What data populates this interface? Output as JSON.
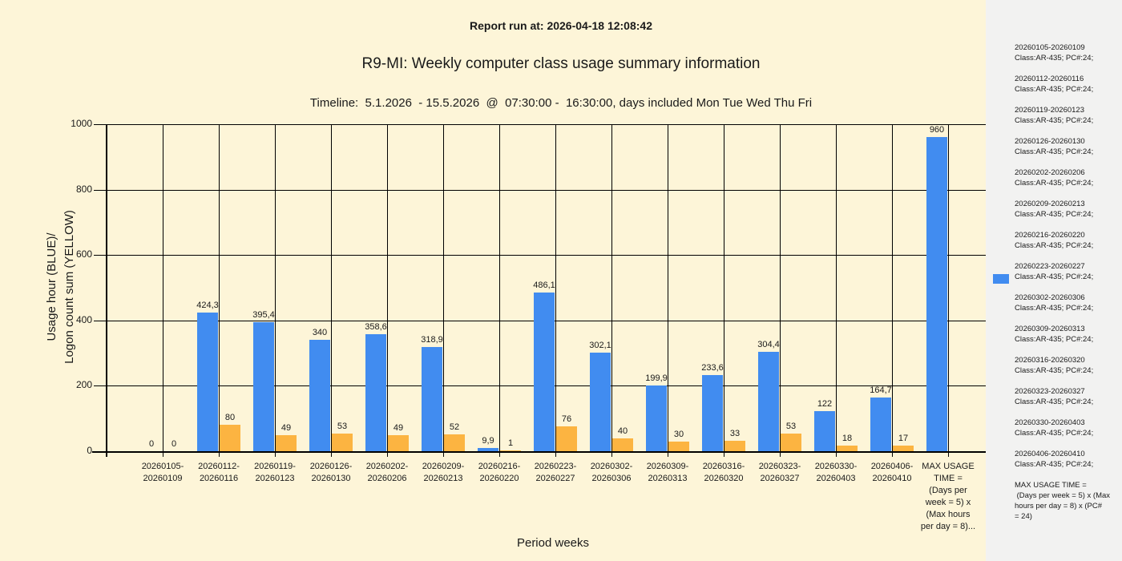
{
  "header": {
    "report_run": "Report run at: 2026-04-18 12:08:42",
    "title": "R9-MI: Weekly computer class usage summary information",
    "timeline": "Timeline:  5.1.2026  - 15.5.2026  @  07:30:00 -  16:30:00, days included Mon Tue Wed Thu Fri"
  },
  "chart_data": {
    "type": "bar",
    "title": "R9-MI: Weekly computer class usage summary information",
    "subtitle": "Report run at: 2026-04-18 12:08:42",
    "timeline": "Timeline:  5.1.2026  - 15.5.2026  @  07:30:00 -  16:30:00, days included Mon Tue Wed Thu Fri",
    "xlabel": "Period weeks",
    "ylabel_lines": [
      "Usage hour (BLUE)/",
      "Logon count sum (YELLOW)"
    ],
    "ylim": [
      0,
      1000
    ],
    "yticks": [
      0,
      200,
      400,
      600,
      800,
      1000
    ],
    "grid": "horizontal at yticks, vertical at category centers",
    "legend_position": "right",
    "categories": [
      [
        "20260105-",
        "20260109"
      ],
      [
        "20260112-",
        "20260116"
      ],
      [
        "20260119-",
        "20260123"
      ],
      [
        "20260126-",
        "20260130"
      ],
      [
        "20260202-",
        "20260206"
      ],
      [
        "20260209-",
        "20260213"
      ],
      [
        "20260216-",
        "20260220"
      ],
      [
        "20260223-",
        "20260227"
      ],
      [
        "20260302-",
        "20260306"
      ],
      [
        "20260309-",
        "20260313"
      ],
      [
        "20260316-",
        "20260320"
      ],
      [
        "20260323-",
        "20260327"
      ],
      [
        "20260330-",
        "20260403"
      ],
      [
        "20260406-",
        "20260410"
      ],
      [
        "MAX USAGE",
        "TIME =",
        "(Days per",
        "week = 5) x",
        "(Max hours",
        "per day = 8)..."
      ]
    ],
    "series": [
      {
        "name": "Usage hour (BLUE)",
        "color": "#418CF0",
        "values": [
          0,
          424.3,
          395.4,
          340,
          358.6,
          318.9,
          9.9,
          486.1,
          302.1,
          199.9,
          233.6,
          304.4,
          122,
          164.7,
          960
        ],
        "labels": [
          "0",
          "424,3",
          "395,4",
          "340",
          "358,6",
          "318,9",
          "9,9",
          "486,1",
          "302,1",
          "199,9",
          "233,6",
          "304,4",
          "122",
          "164,7",
          "960"
        ]
      },
      {
        "name": "Logon count sum (YELLOW)",
        "color": "#FCB441",
        "values": [
          0,
          80,
          49,
          53,
          49,
          52,
          1,
          76,
          40,
          30,
          33,
          53,
          18,
          17,
          null
        ],
        "labels": [
          "0",
          "80",
          "49",
          "53",
          "49",
          "52",
          "1",
          "76",
          "40",
          "30",
          "33",
          "53",
          "18",
          "17",
          null
        ]
      }
    ]
  },
  "legend": {
    "swatch_color": "#418CF0",
    "entries": [
      {
        "range": "20260105-20260109",
        "detail": "Class:AR-435; PC#:24;"
      },
      {
        "range": "20260112-20260116",
        "detail": "Class:AR-435; PC#:24;"
      },
      {
        "range": "20260119-20260123",
        "detail": "Class:AR-435; PC#:24;"
      },
      {
        "range": "20260126-20260130",
        "detail": "Class:AR-435; PC#:24;"
      },
      {
        "range": "20260202-20260206",
        "detail": "Class:AR-435; PC#:24;"
      },
      {
        "range": "20260209-20260213",
        "detail": "Class:AR-435; PC#:24;"
      },
      {
        "range": "20260216-20260220",
        "detail": "Class:AR-435; PC#:24;"
      },
      {
        "range": "20260223-20260227",
        "detail": "Class:AR-435; PC#:24;"
      },
      {
        "range": "20260302-20260306",
        "detail": "Class:AR-435; PC#:24;"
      },
      {
        "range": "20260309-20260313",
        "detail": "Class:AR-435; PC#:24;"
      },
      {
        "range": "20260316-20260320",
        "detail": "Class:AR-435; PC#:24;"
      },
      {
        "range": "20260323-20260327",
        "detail": "Class:AR-435; PC#:24;"
      },
      {
        "range": "20260330-20260403",
        "detail": "Class:AR-435; PC#:24;"
      },
      {
        "range": "20260406-20260410",
        "detail": "Class:AR-435; PC#:24;"
      }
    ],
    "footer_lines": [
      "MAX USAGE TIME =",
      " (Days per week = 5) x (Max",
      "hours per day = 8) x (PC#",
      "= 24)"
    ]
  },
  "colors": {
    "background": "#FDF5D8",
    "sidebar": "#F2F2F1",
    "bar_blue": "#418CF0",
    "bar_yellow": "#FCB441",
    "grid": "#000000"
  }
}
